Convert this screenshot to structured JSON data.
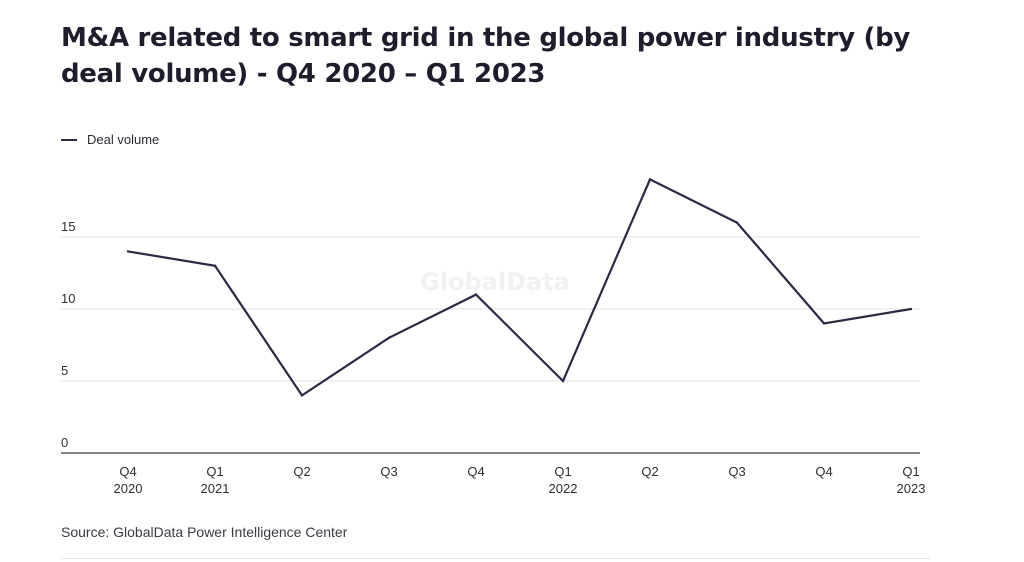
{
  "title": "M&A related to smart grid in the global power industry (by deal volume) - Q4 2020 – Q1 2023",
  "source": "Source: GlobalData Power Intelligence Center",
  "watermark": "GlobalData",
  "chart_data": {
    "type": "line",
    "title": "M&A related to smart grid in the global power industry (by deal volume) - Q4 2020 – Q1 2023",
    "xlabel": "",
    "ylabel": "",
    "categories": [
      [
        "Q4",
        "2020"
      ],
      [
        "Q1",
        "2021"
      ],
      [
        "Q2",
        ""
      ],
      [
        "Q3",
        ""
      ],
      [
        "Q4",
        ""
      ],
      [
        "Q1",
        "2022"
      ],
      [
        "Q2",
        ""
      ],
      [
        "Q3",
        ""
      ],
      [
        "Q4",
        ""
      ],
      [
        "Q1",
        "2023"
      ]
    ],
    "series": [
      {
        "name": "Deal volume",
        "color": "#2c2942",
        "values": [
          14,
          13,
          4,
          8,
          11,
          5,
          19,
          16,
          9,
          10
        ]
      }
    ],
    "yticks": [
      0,
      5,
      10,
      15
    ],
    "ylim": [
      0,
      20
    ],
    "grid": true,
    "legend": "top-left"
  }
}
